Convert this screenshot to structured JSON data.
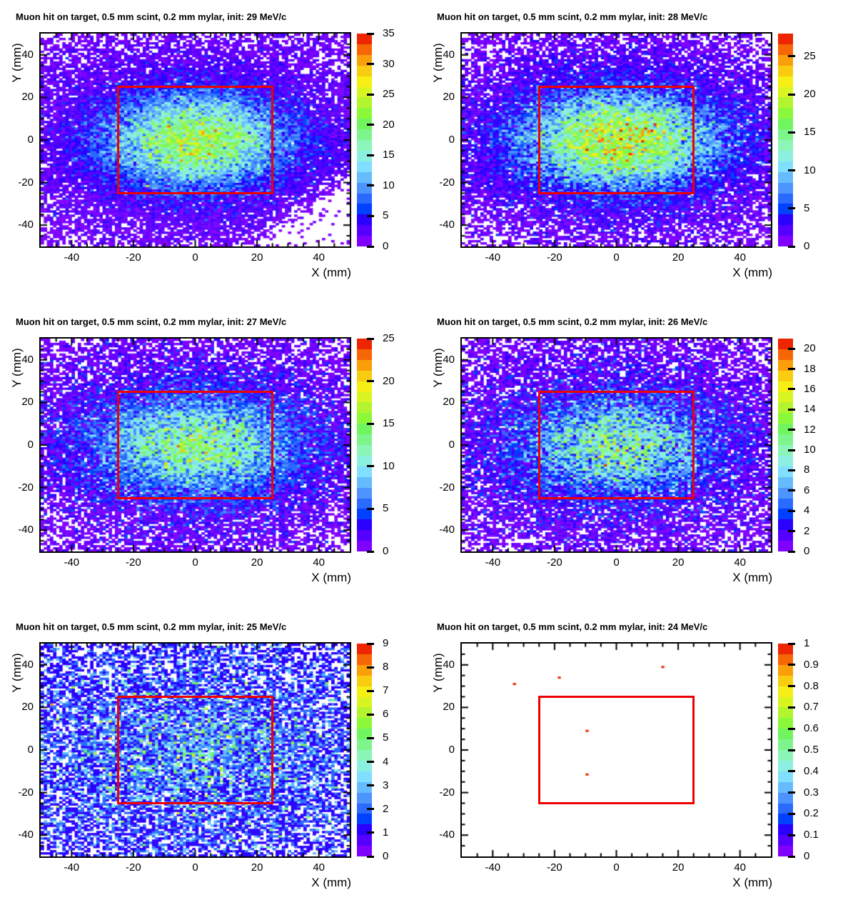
{
  "figure": {
    "background": "#ffffff",
    "frame_color": "#000000",
    "overlay_rect_color": "#ee0000",
    "grid_rows": 3,
    "grid_cols": 2
  },
  "palette": [
    "#7f00ff",
    "#5500ff",
    "#2a00ff",
    "#0040ff",
    "#2a6aff",
    "#4d94ff",
    "#66bbff",
    "#80dfff",
    "#8cf0e0",
    "#8cf5b8",
    "#7df58c",
    "#70f55e",
    "#8cf83a",
    "#b2f52e",
    "#d8f522",
    "#f5ef16",
    "#f8cd10",
    "#fa9e0a",
    "#f76605",
    "#ed2500"
  ],
  "zero_bin_color": "#ffffff",
  "chart_data": [
    {
      "type": "heatmap",
      "title": "Muon hit on target, 0.5 mm scint, 0.2 mm mylar, init: 29 MeV/c",
      "xlabel": "X (mm)",
      "ylabel": "Y (mm)",
      "xlim": [
        -50,
        50
      ],
      "ylim": [
        -50,
        50
      ],
      "x_ticks": [
        -40,
        -20,
        0,
        20,
        40
      ],
      "y_ticks": [
        -40,
        -20,
        0,
        20,
        40
      ],
      "minor_tick_step": 5,
      "bins": [
        100,
        100
      ],
      "zmax": 35,
      "colorbar_ticks": [
        0,
        5,
        10,
        15,
        20,
        25,
        30,
        35
      ],
      "overlay_rect": {
        "x": [
          -25,
          25
        ],
        "y": [
          -25,
          25
        ]
      },
      "distribution": {
        "type": "poisson_gaussian_estimate",
        "seed": 101,
        "amplitude": 19,
        "center": [
          0,
          0
        ],
        "sigma": [
          19,
          14
        ],
        "background": {
          "amplitude": 2.8,
          "sigma": [
            44,
            36
          ]
        },
        "diagonal_cut": {
          "axis": "x_minus_y",
          "start": 55,
          "width": 20,
          "floor": 0.1
        }
      }
    },
    {
      "type": "heatmap",
      "title": "Muon hit on target, 0.5 mm scint, 0.2 mm mylar, init: 28 MeV/c",
      "xlabel": "X (mm)",
      "ylabel": "Y (mm)",
      "xlim": [
        -50,
        50
      ],
      "ylim": [
        -50,
        50
      ],
      "x_ticks": [
        -40,
        -20,
        0,
        20,
        40
      ],
      "y_ticks": [
        -40,
        -20,
        0,
        20,
        40
      ],
      "minor_tick_step": 5,
      "bins": [
        100,
        100
      ],
      "zmax": 28,
      "colorbar_ticks": [
        0,
        5,
        10,
        15,
        20,
        25
      ],
      "overlay_rect": {
        "x": [
          -25,
          25
        ],
        "y": [
          -25,
          25
        ]
      },
      "distribution": {
        "type": "poisson_gaussian_estimate",
        "seed": 202,
        "amplitude": 17,
        "center": [
          1,
          0
        ],
        "sigma": [
          20,
          14
        ],
        "background": {
          "amplitude": 2.7,
          "sigma": [
            44,
            36
          ]
        }
      }
    },
    {
      "type": "heatmap",
      "title": "Muon hit on target, 0.5 mm scint, 0.2 mm mylar, init: 27 MeV/c",
      "xlabel": "X (mm)",
      "ylabel": "Y (mm)",
      "xlim": [
        -50,
        50
      ],
      "ylim": [
        -50,
        50
      ],
      "x_ticks": [
        -40,
        -20,
        0,
        20,
        40
      ],
      "y_ticks": [
        -40,
        -20,
        0,
        20,
        40
      ],
      "minor_tick_step": 5,
      "bins": [
        100,
        100
      ],
      "zmax": 25,
      "colorbar_ticks": [
        0,
        5,
        10,
        15,
        20,
        25
      ],
      "overlay_rect": {
        "x": [
          -25,
          25
        ],
        "y": [
          -25,
          25
        ]
      },
      "distribution": {
        "type": "poisson_gaussian_estimate",
        "seed": 303,
        "amplitude": 11,
        "center": [
          0,
          0
        ],
        "sigma": [
          20,
          14
        ],
        "background": {
          "amplitude": 2.5,
          "sigma": [
            46,
            38
          ]
        }
      }
    },
    {
      "type": "heatmap",
      "title": "Muon hit on target, 0.5 mm scint, 0.2 mm mylar, init: 26 MeV/c",
      "xlabel": "X (mm)",
      "ylabel": "Y (mm)",
      "xlim": [
        -50,
        50
      ],
      "ylim": [
        -50,
        50
      ],
      "x_ticks": [
        -40,
        -20,
        0,
        20,
        40
      ],
      "y_ticks": [
        -40,
        -20,
        0,
        20,
        40
      ],
      "minor_tick_step": 5,
      "bins": [
        100,
        100
      ],
      "zmax": 21,
      "colorbar_ticks": [
        0,
        2,
        4,
        6,
        8,
        10,
        12,
        14,
        16,
        18,
        20
      ],
      "overlay_rect": {
        "x": [
          -25,
          25
        ],
        "y": [
          -25,
          25
        ]
      },
      "distribution": {
        "type": "poisson_gaussian_estimate",
        "seed": 404,
        "amplitude": 8,
        "center": [
          0,
          0
        ],
        "sigma": [
          20,
          14
        ],
        "background": {
          "amplitude": 2.3,
          "sigma": [
            48,
            40
          ]
        }
      }
    },
    {
      "type": "heatmap",
      "title": "Muon hit on target, 0.5 mm scint, 0.2 mm mylar, init: 25 MeV/c",
      "xlabel": "X (mm)",
      "ylabel": "Y (mm)",
      "xlim": [
        -50,
        50
      ],
      "ylim": [
        -50,
        50
      ],
      "x_ticks": [
        -40,
        -20,
        0,
        20,
        40
      ],
      "y_ticks": [
        -40,
        -20,
        0,
        20,
        40
      ],
      "minor_tick_step": 5,
      "bins": [
        100,
        100
      ],
      "zmax": 9,
      "colorbar_ticks": [
        0,
        1,
        2,
        3,
        4,
        5,
        6,
        7,
        8,
        9
      ],
      "overlay_rect": {
        "x": [
          -25,
          25
        ],
        "y": [
          -25,
          25
        ]
      },
      "distribution": {
        "type": "poisson_gaussian_estimate",
        "seed": 505,
        "amplitude": 1.1,
        "center": [
          0,
          0
        ],
        "sigma": [
          24,
          18
        ],
        "background": {
          "amplitude": 1.45,
          "sigma": [
            55,
            50
          ]
        }
      }
    },
    {
      "type": "heatmap",
      "title": "Muon hit on target, 0.5 mm scint, 0.2 mm mylar, init: 24 MeV/c",
      "xlabel": "X (mm)",
      "ylabel": "Y (mm)",
      "xlim": [
        -50,
        50
      ],
      "ylim": [
        -50,
        50
      ],
      "x_ticks": [
        -40,
        -20,
        0,
        20,
        40
      ],
      "y_ticks": [
        -40,
        -20,
        0,
        20,
        40
      ],
      "minor_tick_step": 5,
      "bins": [
        100,
        100
      ],
      "zmax": 1,
      "colorbar_ticks": [
        0,
        0.1,
        0.2,
        0.3,
        0.4,
        0.5,
        0.6,
        0.7,
        0.8,
        0.9,
        1
      ],
      "overlay_rect": {
        "x": [
          -25,
          25
        ],
        "y": [
          -25,
          25
        ]
      },
      "distribution": {
        "type": "poisson_gaussian_estimate",
        "seed": 606,
        "amplitude": 0,
        "center": [
          0,
          0
        ],
        "sigma": [
          1,
          1
        ],
        "background": {
          "amplitude": 0,
          "sigma": [
            1,
            1
          ]
        }
      },
      "points": [
        {
          "x": -33,
          "y": 31,
          "value": 1
        },
        {
          "x": -18.5,
          "y": 34,
          "value": 1
        },
        {
          "x": 15,
          "y": 39,
          "value": 1
        },
        {
          "x": -9.5,
          "y": 9,
          "value": 1
        },
        {
          "x": -9.5,
          "y": -11.5,
          "value": 1
        }
      ]
    }
  ]
}
